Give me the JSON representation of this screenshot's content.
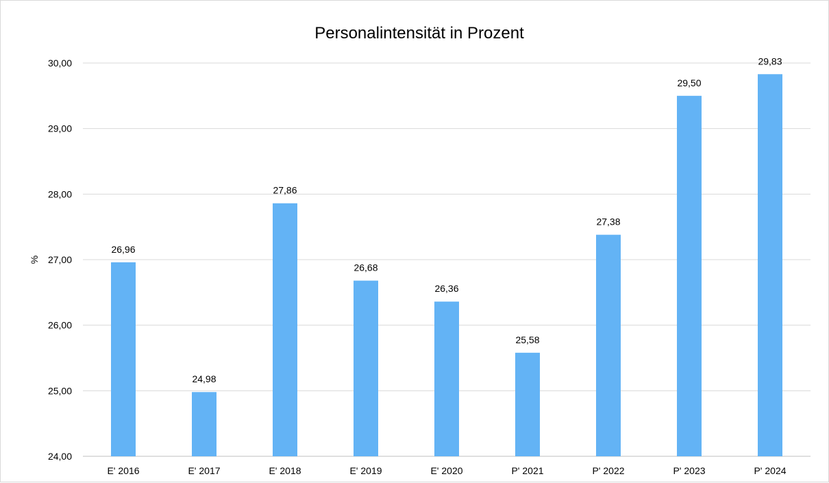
{
  "chart_data": {
    "type": "bar",
    "title": "Personalintensität in Prozent",
    "xlabel": "",
    "ylabel": "%",
    "categories": [
      "E' 2016",
      "E' 2017",
      "E' 2018",
      "E' 2019",
      "E' 2020",
      "P' 2021",
      "P' 2022",
      "P' 2023",
      "P' 2024"
    ],
    "values": [
      26.96,
      24.98,
      27.86,
      26.68,
      26.36,
      25.58,
      27.38,
      29.5,
      29.83
    ],
    "value_labels": [
      "26,96",
      "24,98",
      "27,86",
      "26,68",
      "26,36",
      "25,58",
      "27,38",
      "29,50",
      "29,83"
    ],
    "ylim": [
      24,
      30
    ],
    "yticks": [
      24,
      25,
      26,
      27,
      28,
      29,
      30
    ],
    "ytick_labels": [
      "24,00",
      "25,00",
      "26,00",
      "27,00",
      "28,00",
      "29,00",
      "30,00"
    ],
    "grid": true,
    "legend": "none",
    "colors": {
      "bar": "#63B3F5",
      "grid": "#d9d9d9",
      "axis": "#bfbfbf"
    }
  }
}
